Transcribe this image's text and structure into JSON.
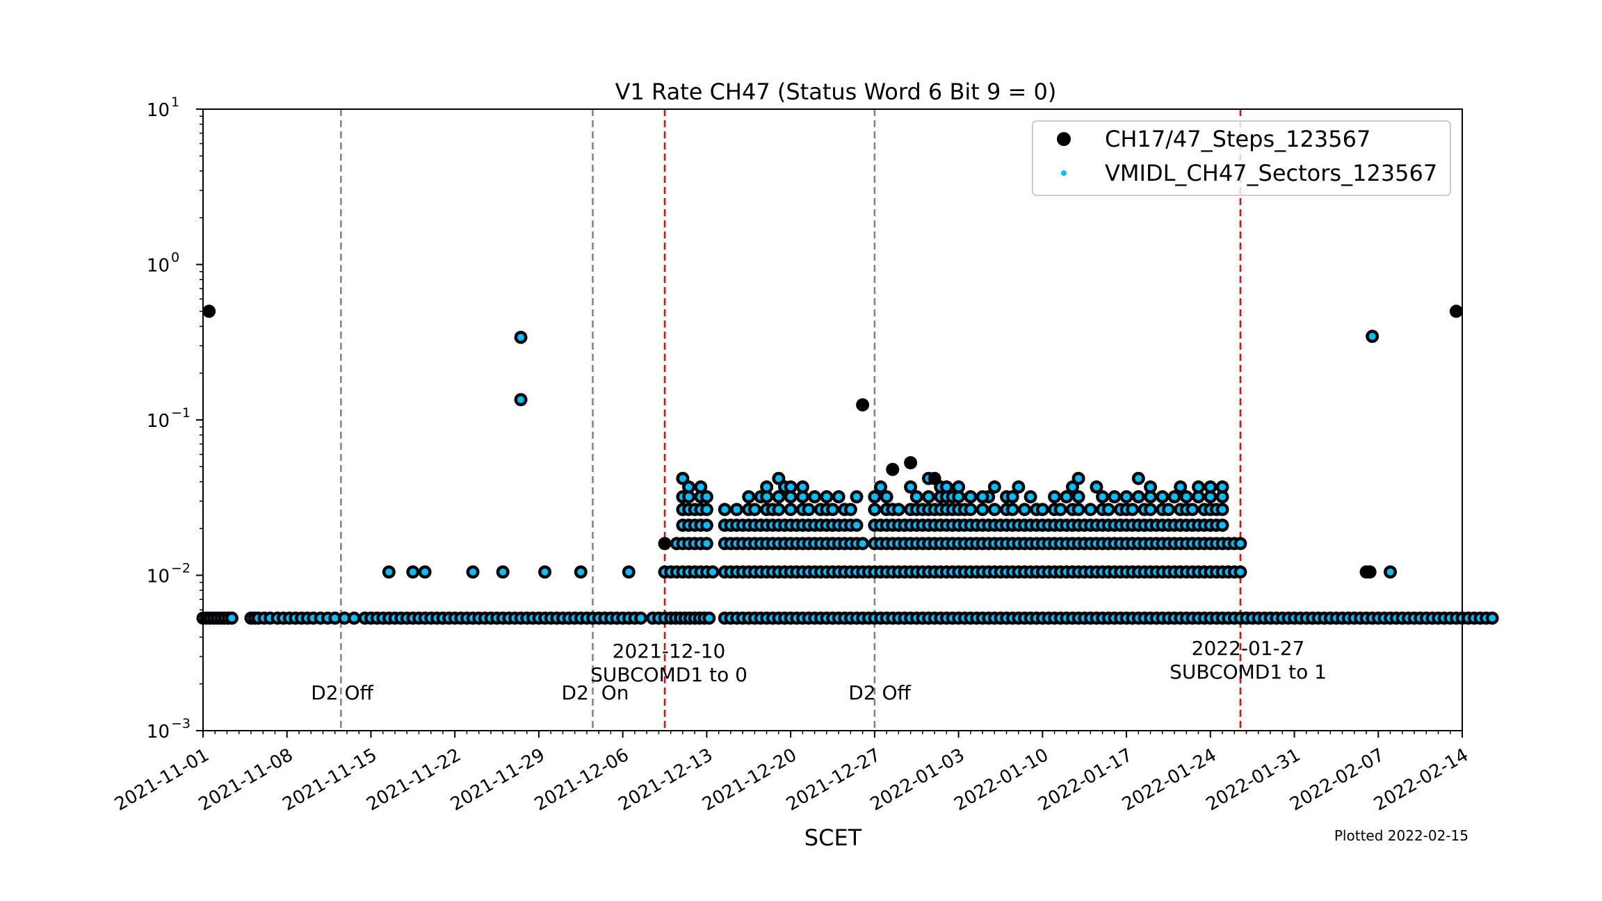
{
  "chart_data": {
    "type": "scatter",
    "title": "V1 Rate CH47 (Status Word 6 Bit 9 = 0)",
    "xlabel": "SCET",
    "ylabel": "",
    "yscale": "log",
    "ylim": [
      0.001,
      10
    ],
    "xlim": [
      "2021-11-01",
      "2022-02-14"
    ],
    "x_ticks": [
      "2021-11-01",
      "2021-11-08",
      "2021-11-15",
      "2021-11-22",
      "2021-11-29",
      "2021-12-06",
      "2021-12-13",
      "2021-12-20",
      "2021-12-27",
      "2022-01-03",
      "2022-01-10",
      "2022-01-17",
      "2022-01-24",
      "2022-01-31",
      "2022-02-07",
      "2022-02-14"
    ],
    "y_ticks": [
      {
        "value": 0.001,
        "base": "10",
        "exp": "−3"
      },
      {
        "value": 0.01,
        "base": "10",
        "exp": "−2"
      },
      {
        "value": 0.1,
        "base": "10",
        "exp": "−1"
      },
      {
        "value": 1,
        "base": "10",
        "exp": "0"
      },
      {
        "value": 10,
        "base": "10",
        "exp": "1"
      }
    ],
    "legend": {
      "location": "upper right",
      "entries": [
        {
          "label": "CH17/47_Steps_123567",
          "color": "#000000",
          "marker": "large-circle"
        },
        {
          "label": "VMIDL_CH47_Sectors_123567",
          "color": "#00bfff",
          "marker": "small-circle"
        }
      ]
    },
    "vlines": [
      {
        "day": 11.5,
        "color": "#808080",
        "style": "dashed",
        "label": "D2 Off"
      },
      {
        "day": 32.5,
        "color": "#808080",
        "style": "dashed",
        "label": "D2  On"
      },
      {
        "day": 38.5,
        "color": "#ff0000",
        "style": "dashed",
        "label": "2021-12-10\nSUBCOMD1 to 0"
      },
      {
        "day": 56,
        "color": "#808080",
        "style": "dashed",
        "label": "D2 Off"
      },
      {
        "day": 86.5,
        "color": "#ff0000",
        "style": "dashed",
        "label": "2022-01-27\nSUBCOMD1 to 1"
      }
    ],
    "annotations": {
      "d2_off_1": "D2 Off",
      "d2_on": "D2  On",
      "subcom0_date": "2021-12-10",
      "subcom0_text": "SUBCOMD1 to 0",
      "d2_off_2": "D2 Off",
      "subcom1_date": "2022-01-27",
      "subcom1_text": "SUBCOMD1 to 1"
    },
    "series": [
      {
        "name": "CH17/47_Steps_123567",
        "note": "x = days since 2021-11-01; both series plotted together except points listed as steps-only",
        "baseline": {
          "value": 0.0053,
          "days": [
            0.0,
            0.3,
            0.6,
            0.9,
            1.2,
            1.5,
            1.8,
            2.1,
            2.4,
            4.0,
            4.3,
            4.6,
            5.1,
            5.6,
            6.2,
            6.7,
            7.2,
            7.7,
            8.2,
            8.7,
            9.2,
            9.8,
            10.4,
            11.0,
            11.8,
            12.6,
            13.5,
            14.0,
            14.5,
            15.0,
            15.5,
            16.0,
            16.5,
            17.0,
            17.5,
            18.0,
            18.5,
            19.0,
            19.5,
            20.0,
            20.5,
            21.0,
            21.5,
            22.0,
            22.5,
            23.0,
            23.5,
            24.0,
            24.5,
            25.0,
            25.5,
            26.0,
            26.5,
            27.0,
            27.5,
            28.0,
            28.5,
            29.0,
            29.5,
            30.0,
            30.5,
            31.0,
            31.5,
            32.0,
            32.5,
            33.0,
            33.5,
            34.0,
            34.5,
            35.0,
            35.5,
            36.0,
            36.5,
            37.5,
            38.0,
            38.5,
            39.0,
            39.4,
            39.8,
            40.2,
            40.6,
            41.0,
            41.4,
            41.8,
            42.2,
            43.5,
            44.0,
            44.5,
            45.0,
            45.5,
            46.0,
            46.5,
            47.0,
            47.5,
            48.0,
            48.5,
            49.0,
            49.5,
            50.0,
            50.5,
            51.0,
            51.5,
            52.0,
            52.5,
            53.0,
            53.5,
            54.0,
            54.5,
            55.0,
            55.5,
            56.0,
            56.5,
            57.0,
            57.5,
            58.0,
            58.5,
            59.0,
            59.5,
            60.0,
            60.5,
            61.0,
            61.5,
            62.0,
            62.5,
            63.0,
            63.5,
            64.0,
            64.5,
            65.0,
            65.5,
            66.0,
            66.5,
            67.0,
            67.5,
            68.0,
            68.5,
            69.0,
            69.5,
            70.0,
            70.5,
            71.0,
            71.5,
            72.0,
            72.5,
            73.0,
            73.5,
            74.0,
            74.5,
            75.0,
            75.5,
            76.0,
            76.5,
            77.0,
            77.5,
            78.0,
            78.5,
            79.0,
            79.5,
            80.0,
            80.5,
            81.0,
            81.5,
            82.0,
            82.5,
            83.0,
            83.5,
            84.0,
            84.5,
            85.0,
            85.5,
            86.0,
            86.5,
            87.0,
            87.5,
            88.0,
            88.5,
            89.0,
            89.5,
            90.0,
            90.5,
            91.0,
            91.5,
            92.0,
            92.5,
            93.0,
            93.5,
            94.0,
            94.5,
            95.0,
            95.5,
            96.0,
            96.5,
            97.0,
            97.5,
            98.0,
            98.5,
            99.0,
            99.5,
            100.0,
            100.5,
            101.0,
            101.5,
            102.0,
            102.5,
            103.0,
            103.5,
            104.0,
            104.5,
            105.0,
            105.5,
            106.0,
            106.5,
            107.0,
            107.5
          ]
        },
        "level_0105": {
          "value": 0.0105,
          "days": [
            15.5,
            17.5,
            18.5,
            22.5,
            25.0,
            28.5,
            31.5,
            35.5,
            38.5,
            39.0,
            39.5,
            40.0,
            40.5,
            41.0,
            41.5,
            42.0,
            42.5,
            43.5,
            44.0,
            44.5,
            45.0,
            45.5,
            46.0,
            46.5,
            47.0,
            47.5,
            48.0,
            48.5,
            49.0,
            49.5,
            50.0,
            50.5,
            51.0,
            51.5,
            52.0,
            52.5,
            53.0,
            53.5,
            54.0,
            54.5,
            55.0,
            55.5,
            56.0,
            56.5,
            57.0,
            57.5,
            58.0,
            58.5,
            59.0,
            59.5,
            60.0,
            60.5,
            61.0,
            61.5,
            62.0,
            62.5,
            63.0,
            63.5,
            64.0,
            64.5,
            65.0,
            65.5,
            66.0,
            66.5,
            67.0,
            67.5,
            68.0,
            68.5,
            69.0,
            69.5,
            70.0,
            70.5,
            71.0,
            71.5,
            72.0,
            72.5,
            73.0,
            73.5,
            74.0,
            74.5,
            75.0,
            75.5,
            76.0,
            76.5,
            77.0,
            77.5,
            78.0,
            78.5,
            79.0,
            79.5,
            80.0,
            80.5,
            81.0,
            81.5,
            82.0,
            82.5,
            83.0,
            83.5,
            84.0,
            84.5,
            85.0,
            85.5,
            86.0,
            86.5,
            97.0,
            97.3,
            99.0
          ]
        },
        "level_016": {
          "value": 0.016,
          "days": [
            38.5,
            39.5,
            40.0,
            40.5,
            41.0,
            41.5,
            42.0,
            43.5,
            44.0,
            44.5,
            45.0,
            45.5,
            46.0,
            46.5,
            47.0,
            47.5,
            48.0,
            48.5,
            49.0,
            49.5,
            50.0,
            50.5,
            51.0,
            51.5,
            52.0,
            52.5,
            53.0,
            53.5,
            54.0,
            54.5,
            55.0,
            56.0,
            56.5,
            57.0,
            57.5,
            58.0,
            58.5,
            59.0,
            59.5,
            60.0,
            60.5,
            61.0,
            61.5,
            62.0,
            62.5,
            63.0,
            63.5,
            64.0,
            64.5,
            65.0,
            65.5,
            66.0,
            66.5,
            67.0,
            67.5,
            68.0,
            68.5,
            69.0,
            69.5,
            70.0,
            70.5,
            71.0,
            71.5,
            72.0,
            72.5,
            73.0,
            73.5,
            74.0,
            74.5,
            75.0,
            75.5,
            76.0,
            76.5,
            77.0,
            77.5,
            78.0,
            78.5,
            79.0,
            79.5,
            80.0,
            80.5,
            81.0,
            81.5,
            82.0,
            82.5,
            83.0,
            83.5,
            84.0,
            84.5,
            85.0,
            85.5,
            86.0,
            86.5
          ]
        },
        "level_021": {
          "value": 0.021,
          "days": [
            40.0,
            40.5,
            41.0,
            41.5,
            42.0,
            43.5,
            44.0,
            44.5,
            45.0,
            45.5,
            46.0,
            46.5,
            47.0,
            47.5,
            48.0,
            48.5,
            49.0,
            49.5,
            50.0,
            50.5,
            51.0,
            51.5,
            52.0,
            52.5,
            53.0,
            53.5,
            54.0,
            54.5,
            56.0,
            56.5,
            57.0,
            57.5,
            58.0,
            58.5,
            59.0,
            59.5,
            60.0,
            60.5,
            61.0,
            61.5,
            62.0,
            62.5,
            63.0,
            63.5,
            64.0,
            64.5,
            65.0,
            65.5,
            66.0,
            66.5,
            67.0,
            67.5,
            68.0,
            68.5,
            69.0,
            69.5,
            70.0,
            70.5,
            71.0,
            71.5,
            72.0,
            72.5,
            73.0,
            73.5,
            74.0,
            74.5,
            75.0,
            75.5,
            76.0,
            76.5,
            77.0,
            77.5,
            78.0,
            78.5,
            79.0,
            79.5,
            80.0,
            80.5,
            81.0,
            81.5,
            82.0,
            82.5,
            83.0,
            83.5,
            84.0,
            84.5,
            85.0
          ]
        },
        "level_026": {
          "value": 0.0265,
          "days": [
            40.0,
            40.5,
            41.0,
            41.5,
            42.0,
            43.5,
            44.5,
            45.5,
            46.0,
            47.0,
            47.5,
            48.0,
            49.0,
            50.0,
            50.5,
            51.5,
            52.0,
            52.5,
            53.5,
            54.0,
            56.0,
            57.0,
            57.5,
            58.0,
            59.0,
            59.5,
            60.0,
            60.5,
            61.0,
            61.5,
            62.0,
            62.5,
            63.0,
            63.5,
            64.0,
            65.0,
            66.0,
            67.0,
            67.5,
            68.5,
            69.5,
            70.0,
            71.0,
            71.5,
            72.5,
            73.0,
            74.0,
            75.0,
            75.5,
            76.5,
            77.0,
            77.5,
            78.5,
            79.0,
            80.0,
            80.5,
            81.5,
            82.0,
            82.5,
            83.5,
            84.0,
            84.5,
            85.0
          ]
        },
        "level_032": {
          "value": 0.032,
          "days": [
            40.0,
            40.5,
            41.5,
            42.0,
            45.5,
            46.5,
            47.0,
            48.0,
            49.0,
            50.0,
            51.0,
            52.0,
            53.0,
            54.5,
            56.0,
            57.0,
            59.5,
            60.5,
            61.5,
            62.0,
            62.5,
            63.0,
            64.0,
            65.5,
            67.0,
            67.5,
            69.0,
            71.0,
            72.0,
            73.0,
            75.0,
            76.0,
            77.0,
            78.0,
            79.0,
            80.0,
            81.0,
            82.0,
            83.0,
            84.0,
            85.0
          ]
        },
        "level_037": {
          "value": 0.037,
          "days": [
            40.5,
            41.5,
            47.0,
            48.5,
            49.0,
            50.0,
            56.5,
            59.0,
            63.0,
            66.0,
            68.0,
            72.5,
            74.5,
            79.0,
            81.5,
            83.0,
            84.0,
            85.0
          ]
        },
        "level_042": {
          "value": 0.042,
          "days": [
            40.0,
            48.0,
            60.5,
            73.0,
            78.0
          ]
        },
        "isolated": [
          {
            "day": 0.5,
            "value": 0.5
          },
          {
            "day": 26.5,
            "value": 0.34
          },
          {
            "day": 26.5,
            "value": 0.135
          },
          {
            "day": 55.0,
            "value": 0.125
          },
          {
            "day": 57.5,
            "value": 0.048
          },
          {
            "day": 59.0,
            "value": 0.053
          },
          {
            "day": 61.0,
            "value": 0.042
          },
          {
            "day": 61.5,
            "value": 0.037
          },
          {
            "day": 62.0,
            "value": 0.037
          },
          {
            "day": 64.0,
            "value": 0.032
          },
          {
            "day": 65.0,
            "value": 0.032
          },
          {
            "day": 97.5,
            "value": 0.345
          },
          {
            "day": 104.5,
            "value": 0.5
          }
        ],
        "steps_only": [
          {
            "day": 0.5,
            "value": 0.5
          },
          {
            "day": 55.0,
            "value": 0.125
          },
          {
            "day": 57.5,
            "value": 0.048
          },
          {
            "day": 59.0,
            "value": 0.053
          },
          {
            "day": 61.0,
            "value": 0.042
          },
          {
            "day": 104.5,
            "value": 0.5
          },
          {
            "day": 38.5,
            "value": 0.016
          },
          {
            "day": 97.0,
            "value": 0.0105
          },
          {
            "day": 97.3,
            "value": 0.0105
          }
        ]
      },
      {
        "name": "VMIDL_CH47_Sectors_123567",
        "note": "Coincides with CH17/47_Steps points except the steps_only entries"
      }
    ]
  },
  "footnote": "Plotted 2022-02-15"
}
